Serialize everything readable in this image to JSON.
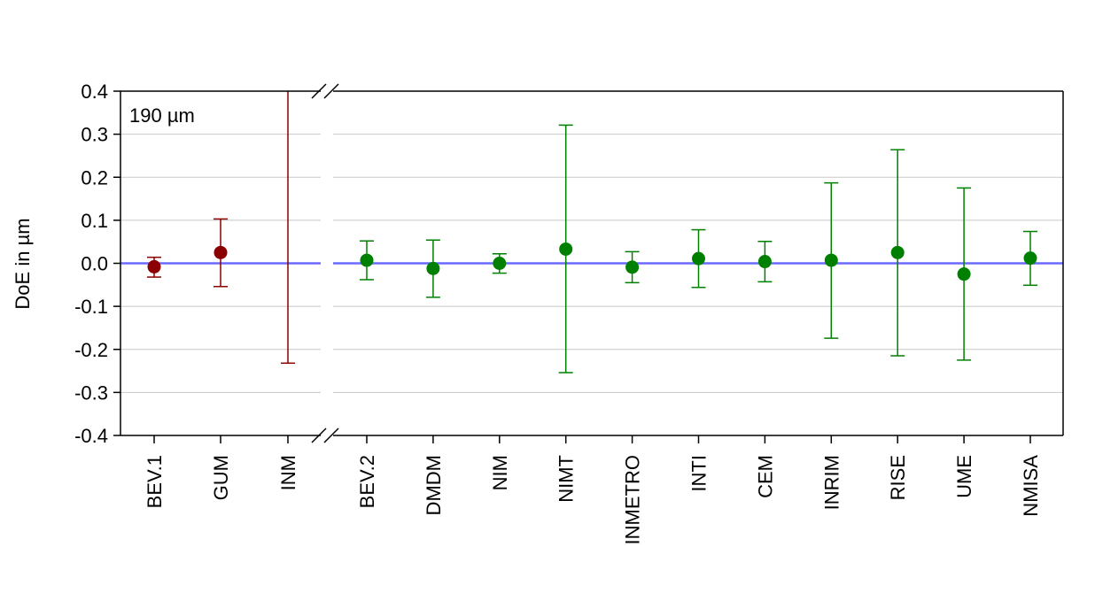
{
  "chart_data": {
    "type": "scatter",
    "ylabel": "DoE in µm",
    "annotation": "190 µm",
    "ylim": [
      -0.4,
      0.4
    ],
    "yticks": [
      "-0.4",
      "-0.3",
      "-0.2",
      "-0.1",
      "0.0",
      "0.1",
      "0.2",
      "0.3",
      "0.4"
    ],
    "ytick_values": [
      -0.4,
      -0.3,
      -0.2,
      -0.1,
      0.0,
      0.1,
      0.2,
      0.3,
      0.4
    ],
    "grid": true,
    "reference_line": 0.0,
    "axis_break": true,
    "colors": {
      "group1": "#8b0000",
      "group2": "#008000",
      "reference": "#6a6aff",
      "grid": "#c8c8c8"
    },
    "groups": [
      {
        "categories": [
          "BEV.1",
          "GUM",
          "INM"
        ],
        "points": [
          {
            "label": "BEV.1",
            "y": -0.008,
            "low": -0.032,
            "high": 0.014
          },
          {
            "label": "GUM",
            "y": 0.025,
            "low": -0.054,
            "high": 0.103
          },
          {
            "label": "INM",
            "y": null,
            "low": -0.232,
            "high": 0.4
          }
        ]
      },
      {
        "categories": [
          "BEV.2",
          "DMDM",
          "NIM",
          "NIMT",
          "INMETRO",
          "INTI",
          "CEM",
          "INRIM",
          "RISE",
          "UME",
          "NMISA"
        ],
        "points": [
          {
            "label": "BEV.2",
            "y": 0.007,
            "low": -0.038,
            "high": 0.052
          },
          {
            "label": "DMDM",
            "y": -0.012,
            "low": -0.079,
            "high": 0.054
          },
          {
            "label": "NIM",
            "y": 0.0,
            "low": -0.023,
            "high": 0.022
          },
          {
            "label": "NIMT",
            "y": 0.033,
            "low": -0.254,
            "high": 0.321
          },
          {
            "label": "INMETRO",
            "y": -0.009,
            "low": -0.045,
            "high": 0.027
          },
          {
            "label": "INTI",
            "y": 0.011,
            "low": -0.056,
            "high": 0.078
          },
          {
            "label": "CEM",
            "y": 0.004,
            "low": -0.043,
            "high": 0.051
          },
          {
            "label": "INRIM",
            "y": 0.007,
            "low": -0.174,
            "high": 0.187
          },
          {
            "label": "RISE",
            "y": 0.025,
            "low": -0.215,
            "high": 0.264
          },
          {
            "label": "UME",
            "y": -0.025,
            "low": -0.225,
            "high": 0.175
          },
          {
            "label": "NMISA",
            "y": 0.012,
            "low": -0.051,
            "high": 0.074
          }
        ]
      }
    ]
  }
}
